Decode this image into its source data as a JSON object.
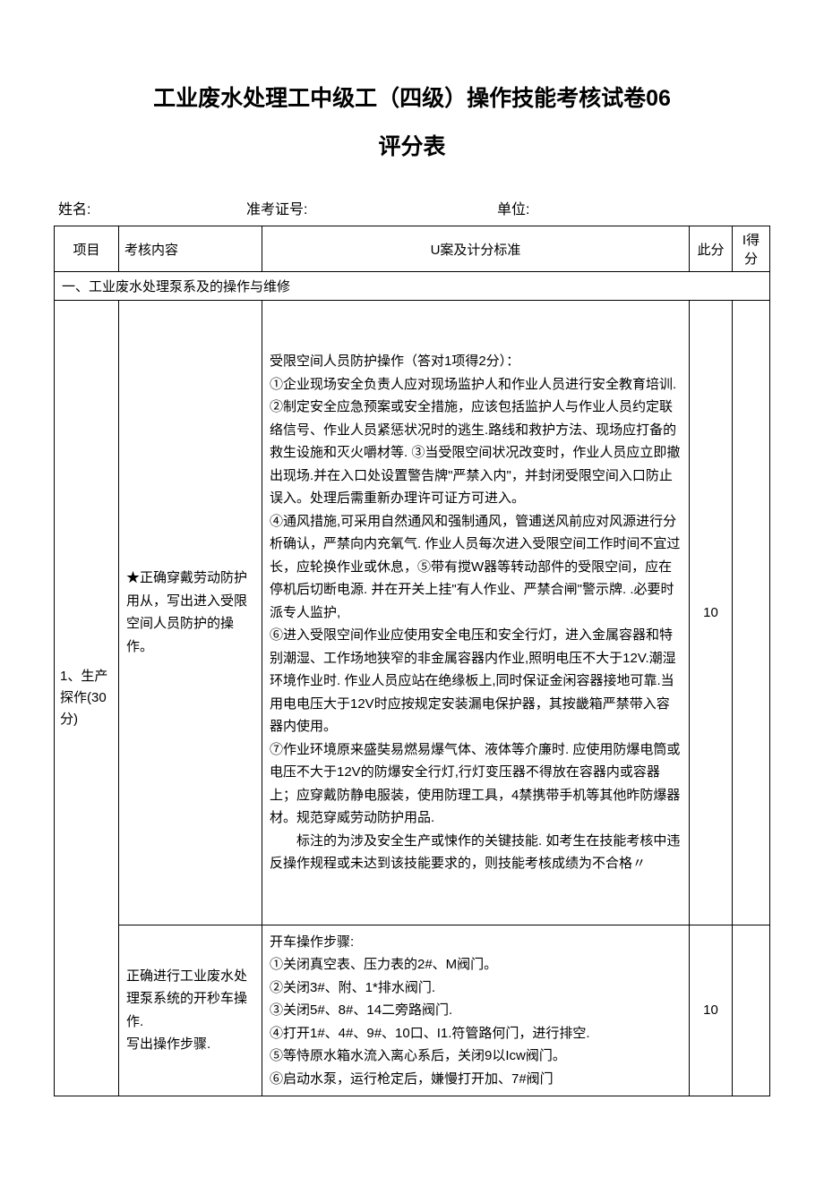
{
  "title_main": "工业废水处理工中级工（四级）操作技能考核试卷06",
  "title_sub": "评分表",
  "info": {
    "name_label": "姓名:",
    "id_label": "准考证号:",
    "unit_label": "单位:"
  },
  "headers": {
    "project": "项目",
    "content": "考核内容",
    "criteria": "U案及计分标准",
    "score_allocated": "此分",
    "score_actual": "I得分"
  },
  "section1": {
    "title": "一、工业废水处理泵系及的操作与维修"
  },
  "row1": {
    "project": "1、生产探作(30分)",
    "content": "★正确穿戴劳动防护用从，写出进入受限空间人员防护的操作。",
    "criteria_intro": "受限空间人员防护操作（答对1项得2分）：",
    "criteria_1": "①企业现场安全负责人应对现场监护人和作业人员进行安全教育培训.",
    "criteria_2": "②制定安全应急预案或安全措施，应该包括监护人与作业人员约定联络信号、作业人员紧惩状况时的逃生.路线和救护方法、现场应打备的救生设施和灭火嚼材等. ③当受限空间状况改变时，作业人员应立即撤出现场.并在入口处设置警告牌\"严禁入内\"，并封闭受限空间入口防止误入。处理后需重新办理许可证方可进入。",
    "criteria_4": "④通风措施,可采用自然通风和强制通风，管逋送风前应对风源进行分析确认，严禁向内充氧气. 作业人员每次进入受限空间工作时间不宜过长，应轮换作业或休息，⑤带有搅W器等转动部件的受限空间，应在停机后切断电源. 并在开关上挂\"有人作业、严禁合闸\"警示牌. .必要时派专人监护,",
    "criteria_6": "⑥进入受限空间作业应使用安全电压和安全行灯，进入金属容器和特别潮湿、工作场地狭窄的非金属容器内作业,照明电压不大于12V.潮湿环境作业时. 作业人员应站在绝缘板上,同时保证金闲容器接地可靠.当用电电压大于12V时应按规定安装漏电保护器，其按畿箱严禁带入容器内使用。",
    "criteria_7": "⑦作业环境原来盛奘易燃易爆气体、液体等介廉时. 应使用防爆电筒或电压不大于12V的防爆安全行灯,行灯变压器不得放在容器内或容器上；应穿戴防静电服装，使用防理工具，4禁携带手机等其他昨防爆器材。规范穿威劳动防护用品.",
    "criteria_note": "标注的为涉及安全生产或悚作的关键技能. 如考生在技能考核中违反操作规程或未达到该技能要求的，则技能考核成绩为不合格〃",
    "score": "10"
  },
  "row2": {
    "content": "正确进行工业废水处理泵系统的开秒车操作.\n写出操作步骤.",
    "criteria_intro": "开车操作步骤:",
    "criteria_1": "①关闭真空表、压力表的2#、M阀门。",
    "criteria_2": "②关闭3#、附、1*排水阀门.",
    "criteria_3": "③关闭5#、8#、14二旁路阀门.",
    "criteria_4": "④打开1#、4#、9#、10口、I1.符管路何门，进行排空.",
    "criteria_5": "⑤等恃原水箱水流入离心系后，关闭9以Icw阀门。",
    "criteria_6": "⑥启动水泵，运行枪定后，嫌慢打开加、7#阀门",
    "score": "10"
  }
}
